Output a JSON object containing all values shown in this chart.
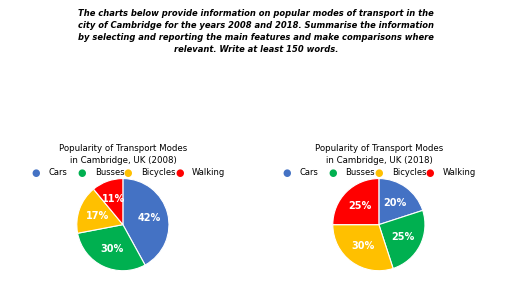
{
  "title_text": "The charts below provide information on popular modes of transport in the\ncity of Cambridge for the years 2008 and 2018. Summarise the information\nby selecting and reporting the main features and make comparisons where\nrelevant. Write at least 150 words.",
  "legend_labels": [
    "Cars",
    "Busses",
    "Bicycles",
    "Walking"
  ],
  "legend_colors": [
    "#4472C4",
    "#00B050",
    "#FFC000",
    "#FF0000"
  ],
  "pie1_values": [
    42,
    30,
    17,
    11
  ],
  "pie1_colors": [
    "#4472C4",
    "#00B050",
    "#FFC000",
    "#FF0000"
  ],
  "pie1_labels": [
    "42%",
    "30%",
    "17%",
    "11%"
  ],
  "pie1_title": "Popularity of Transport Modes\nin Cambridge, UK (2008)",
  "pie2_values": [
    20,
    25,
    30,
    25
  ],
  "pie2_colors": [
    "#4472C4",
    "#00B050",
    "#FFC000",
    "#FF0000"
  ],
  "pie2_labels": [
    "20%",
    "25%",
    "30%",
    "25%"
  ],
  "pie2_title": "Popularity of Transport Modes\nin Cambridge, UK (2018)",
  "bg_color": "#FFFFFF",
  "text_color": "#000000"
}
